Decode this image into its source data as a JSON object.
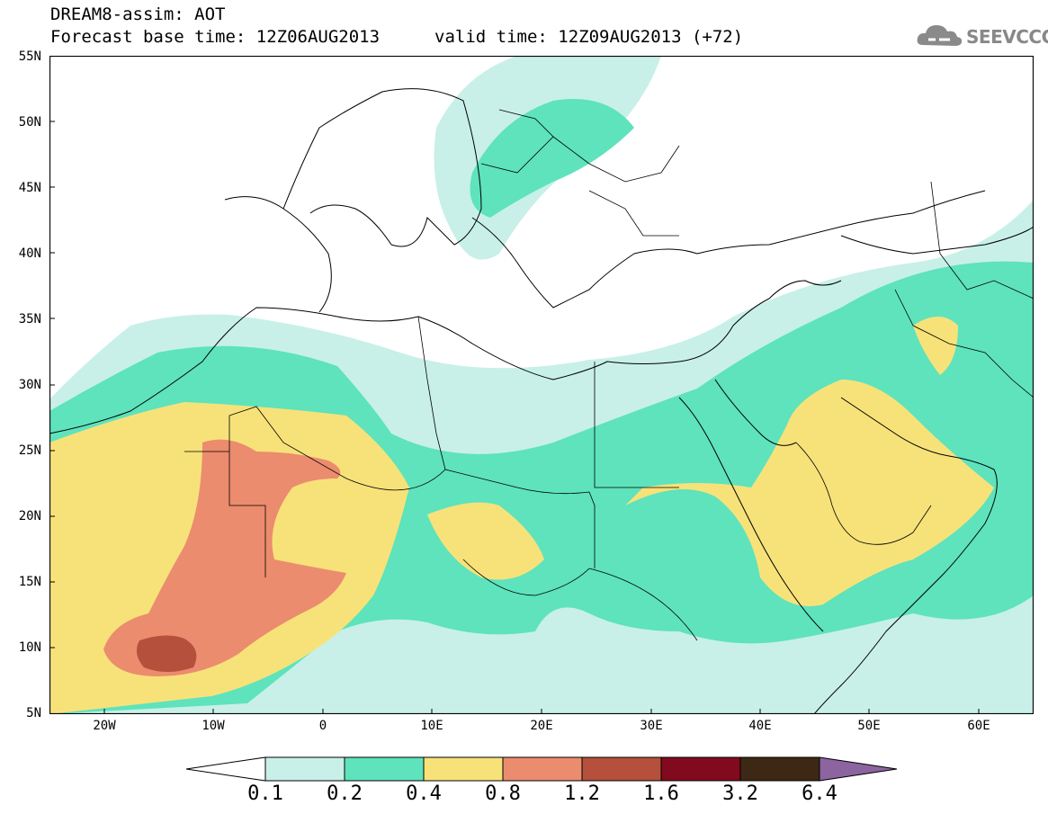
{
  "header": {
    "title": "DREAM8-assim: AOT",
    "base_time": "Forecast base time: 12Z06AUG2013",
    "valid_time": "valid time: 12Z09AUG2013 (+72)",
    "logo_text": "SEEVCCC"
  },
  "map": {
    "lat_labels": [
      "55N",
      "50N",
      "45N",
      "40N",
      "35N",
      "30N",
      "25N",
      "20N",
      "15N",
      "10N",
      "5N"
    ],
    "lon_labels": [
      "20W",
      "10W",
      "0",
      "10E",
      "20E",
      "30E",
      "40E",
      "50E",
      "60E"
    ]
  },
  "legend": {
    "labels": [
      "0.1",
      "0.2",
      "0.4",
      "0.8",
      "1.2",
      "1.6",
      "3.2",
      "6.4"
    ],
    "colors": [
      "#c8f0e8",
      "#5ee3bc",
      "#f7e27a",
      "#eb8c6e",
      "#b4503c",
      "#820a1e",
      "#3c2814",
      "#8c64a0"
    ]
  }
}
